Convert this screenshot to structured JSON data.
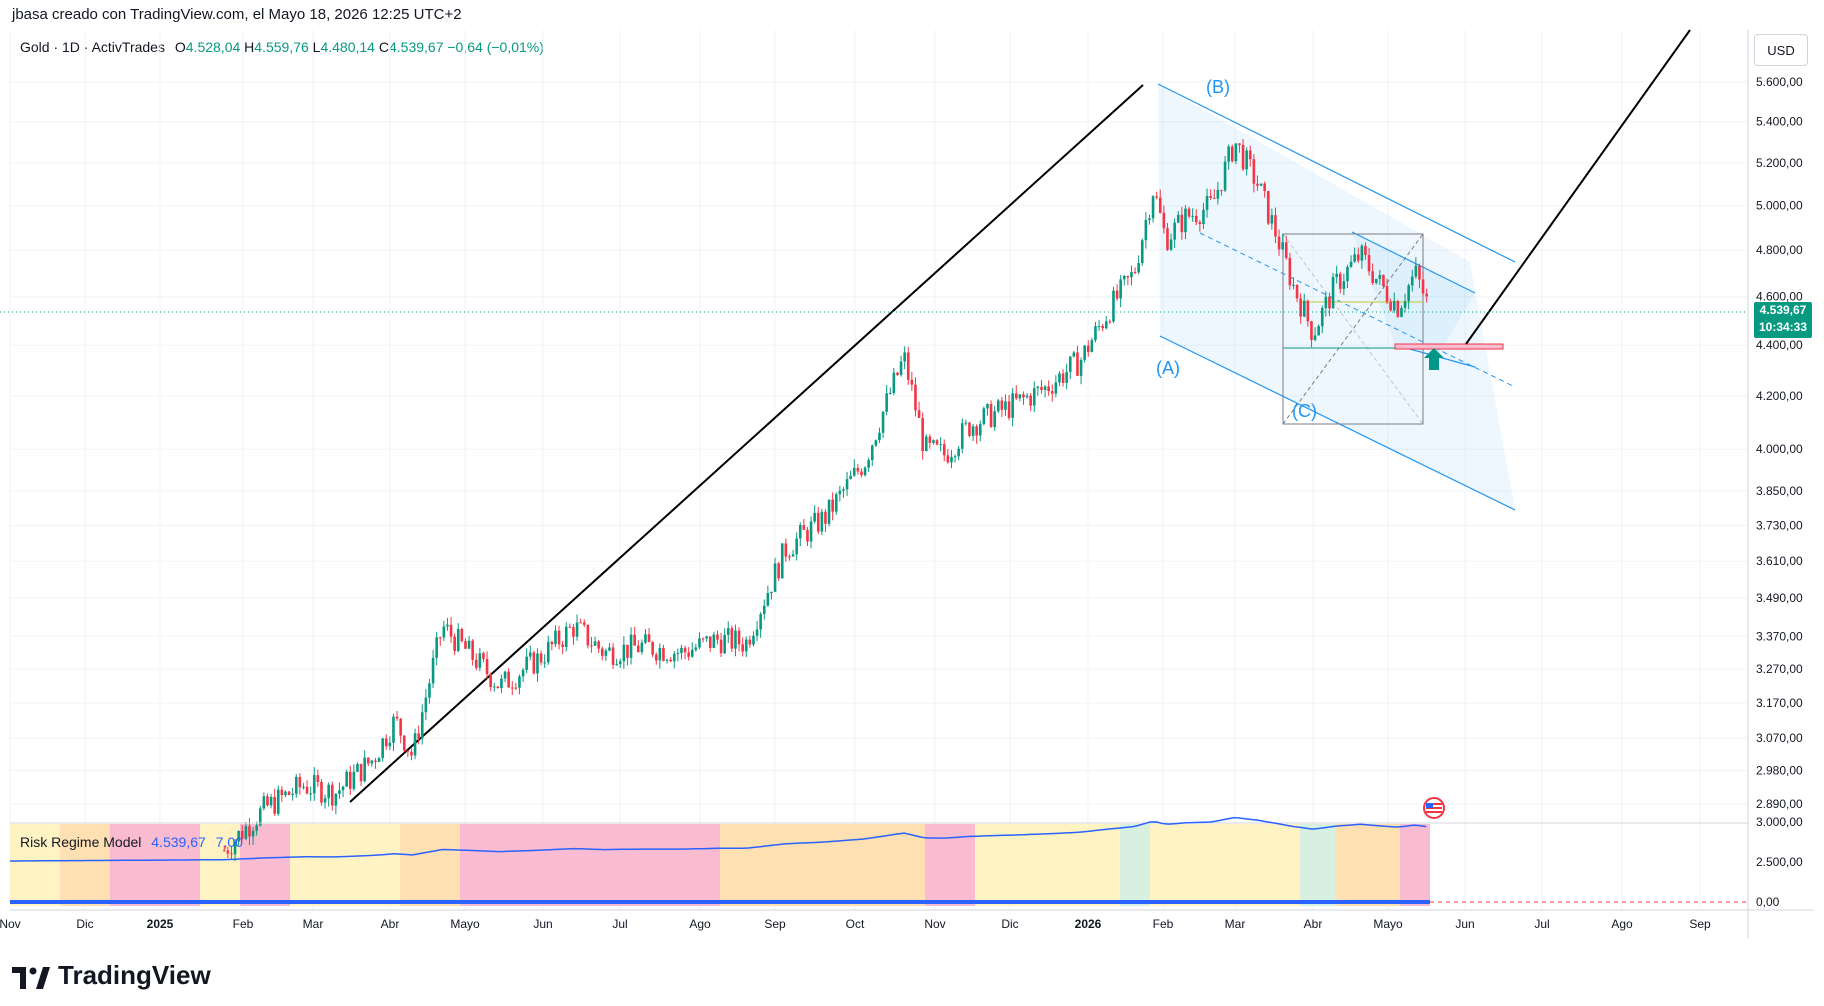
{
  "header": {
    "author_line": "jbasa creado con TradingView.com, el Mayo 18, 2026 12:25 UTC+2"
  },
  "symbol": {
    "name": "Gold · 1D · ActivTrades",
    "open_label": "O",
    "open": "4.528,04",
    "high_label": "H",
    "high": "4.559,76",
    "low_label": "L",
    "low": "4.480,14",
    "close_label": "C",
    "close": "4.539,67",
    "change": "−0,64 (−0,01%)"
  },
  "currency": "USD",
  "last_price": {
    "price": "4.539,67",
    "countdown": "10:34:33"
  },
  "wave_labels": {
    "a": "(A)",
    "b": "(B)",
    "c": "(C)"
  },
  "indicator": {
    "name": "Risk Regime Model",
    "value1": "4.539,67",
    "value2": "7,00",
    "y_ticks": [
      "3.000,00",
      "2.500,00",
      "0,00"
    ]
  },
  "brand": "TradingView",
  "colors": {
    "up": "#089981",
    "down": "#f23645",
    "channel": "#2196f3",
    "trend": "#000000",
    "zone_red": "#f8bbd0",
    "zone_yellow": "#fff3c4",
    "zone_green": "#d8f0e0",
    "zone_orange": "#ffe0b2"
  },
  "chart_data": {
    "type": "line",
    "scale": "log",
    "grid": true,
    "y_ticks": [
      "5.600,00",
      "5.400,00",
      "5.200,00",
      "5.000,00",
      "4.800,00",
      "4.600,00",
      "4.400,00",
      "4.200,00",
      "4.000,00",
      "3.850,00",
      "3.730,00",
      "3.610,00",
      "3.490,00",
      "3.370,00",
      "3.270,00",
      "3.170,00",
      "3.070,00",
      "2.980,00",
      "2.890,00"
    ],
    "x_ticks": [
      "Nov",
      "Dic",
      "2025",
      "Feb",
      "Mar",
      "Abr",
      "Mayo",
      "Jun",
      "Jul",
      "Ago",
      "Sep",
      "Oct",
      "Nov",
      "Dic",
      "2026",
      "Feb",
      "Mar",
      "Abr",
      "Mayo",
      "Jun",
      "Jul",
      "Ago",
      "Sep"
    ],
    "x": [
      "2025-01-25",
      "2025-02-10",
      "2025-02-25",
      "2025-03-10",
      "2025-03-25",
      "2025-04-03",
      "2025-04-10",
      "2025-04-22",
      "2025-05-05",
      "2025-05-15",
      "2025-05-30",
      "2025-06-13",
      "2025-06-25",
      "2025-07-10",
      "2025-07-25",
      "2025-08-08",
      "2025-08-20",
      "2025-09-05",
      "2025-09-20",
      "2025-10-05",
      "2025-10-20",
      "2025-10-28",
      "2025-11-05",
      "2025-11-15",
      "2025-12-01",
      "2025-12-15",
      "2025-12-29",
      "2026-01-10",
      "2026-01-20",
      "2026-01-28",
      "2026-02-02",
      "2026-02-10",
      "2026-02-20",
      "2026-03-01",
      "2026-03-10",
      "2026-03-18",
      "2026-03-24",
      "2026-04-01",
      "2026-04-10",
      "2026-04-20",
      "2026-04-28",
      "2026-05-05",
      "2026-05-12",
      "2026-05-18"
    ],
    "series": [
      {
        "values": [
          2770,
          2880,
          2940,
          2920,
          3010,
          3120,
          3020,
          3400,
          3300,
          3220,
          3300,
          3400,
          3320,
          3340,
          3320,
          3360,
          3350,
          3650,
          3760,
          3960,
          4350,
          4000,
          3980,
          4090,
          4160,
          4230,
          4340,
          4550,
          4700,
          5080,
          4850,
          4950,
          5000,
          5300,
          5100,
          4850,
          4650,
          4450,
          4650,
          4780,
          4650,
          4560,
          4700,
          4540
        ]
      }
    ],
    "indicator_series": {
      "name": "Risk Regime Model",
      "value": 7.0
    }
  }
}
